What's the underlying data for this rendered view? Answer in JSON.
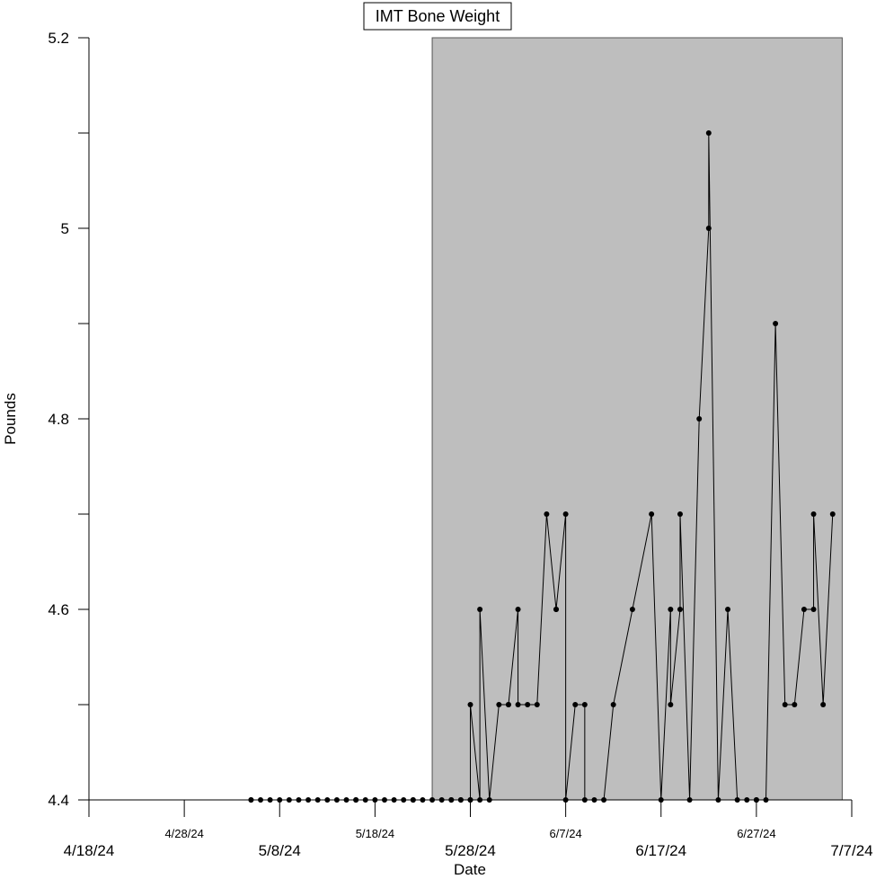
{
  "chart_data": {
    "type": "line",
    "title": "IMT Bone Weight",
    "xlabel": "Date",
    "ylabel": "Pounds",
    "ylim": [
      4.4,
      5.2
    ],
    "y_ticks": [
      4.4,
      4.5,
      4.6,
      4.7,
      4.8,
      4.9,
      5.0,
      5.1,
      5.2
    ],
    "y_tick_labels": [
      "4.4",
      "",
      "4.6",
      "",
      "4.8",
      "",
      "5",
      "",
      "5.2"
    ],
    "xlim": [
      "2024-04-18",
      "2024-07-07"
    ],
    "x_ticks": [
      {
        "date": "2024-04-18",
        "label": "4/18/24",
        "size": "large"
      },
      {
        "date": "2024-04-28",
        "label": "4/28/24",
        "size": "small"
      },
      {
        "date": "2024-05-08",
        "label": "5/8/24",
        "size": "large"
      },
      {
        "date": "2024-05-18",
        "label": "5/18/24",
        "size": "small"
      },
      {
        "date": "2024-05-28",
        "label": "5/28/24",
        "size": "large"
      },
      {
        "date": "2024-06-07",
        "label": "6/7/24",
        "size": "small"
      },
      {
        "date": "2024-06-17",
        "label": "6/17/24",
        "size": "large"
      },
      {
        "date": "2024-06-27",
        "label": "6/27/24",
        "size": "small"
      },
      {
        "date": "2024-07-07",
        "label": "7/7/24",
        "size": "large"
      }
    ],
    "shaded_region": {
      "x_start": "2024-05-24",
      "x_end": "2024-07-06",
      "color": "#bebebe"
    },
    "grid": false,
    "series": [
      {
        "points": [
          [
            "2024-05-05",
            4.4
          ],
          [
            "2024-05-05",
            4.4
          ],
          [
            "2024-05-06",
            4.4
          ],
          [
            "2024-05-07",
            4.4
          ],
          [
            "2024-05-08",
            4.4
          ],
          [
            "2024-05-09",
            4.4
          ],
          [
            "2024-05-10",
            4.4
          ],
          [
            "2024-05-11",
            4.4
          ],
          [
            "2024-05-12",
            4.4
          ],
          [
            "2024-05-13",
            4.4
          ],
          [
            "2024-05-14",
            4.4
          ],
          [
            "2024-05-15",
            4.4
          ],
          [
            "2024-05-16",
            4.4
          ],
          [
            "2024-05-16",
            4.4
          ],
          [
            "2024-05-17",
            4.4
          ],
          [
            "2024-05-18",
            4.4
          ],
          [
            "2024-05-19",
            4.4
          ],
          [
            "2024-05-20",
            4.4
          ],
          [
            "2024-05-21",
            4.4
          ],
          [
            "2024-05-22",
            4.4
          ],
          [
            "2024-05-22",
            4.4
          ],
          [
            "2024-05-23",
            4.4
          ],
          [
            "2024-05-24",
            4.4
          ],
          [
            "2024-05-25",
            4.4
          ],
          [
            "2024-05-26",
            4.4
          ],
          [
            "2024-05-26",
            4.4
          ],
          [
            "2024-05-27",
            4.4
          ],
          [
            "2024-05-27",
            4.4
          ],
          [
            "2024-05-28",
            4.4
          ],
          [
            "2024-05-28",
            4.4
          ],
          [
            "2024-05-28",
            4.5
          ],
          [
            "2024-05-29",
            4.4
          ],
          [
            "2024-05-29",
            4.6
          ],
          [
            "2024-05-30",
            4.4
          ],
          [
            "2024-05-31",
            4.5
          ],
          [
            "2024-06-01",
            4.5
          ],
          [
            "2024-06-01",
            4.5
          ],
          [
            "2024-06-02",
            4.6
          ],
          [
            "2024-06-02",
            4.5
          ],
          [
            "2024-06-03",
            4.5
          ],
          [
            "2024-06-04",
            4.5
          ],
          [
            "2024-06-05",
            4.7
          ],
          [
            "2024-06-06",
            4.6
          ],
          [
            "2024-06-06",
            4.6
          ],
          [
            "2024-06-07",
            4.7
          ],
          [
            "2024-06-07",
            4.4
          ],
          [
            "2024-06-08",
            4.5
          ],
          [
            "2024-06-09",
            4.5
          ],
          [
            "2024-06-09",
            4.4
          ],
          [
            "2024-06-10",
            4.4
          ],
          [
            "2024-06-11",
            4.4
          ],
          [
            "2024-06-12",
            4.5
          ],
          [
            "2024-06-14",
            4.6
          ],
          [
            "2024-06-16",
            4.7
          ],
          [
            "2024-06-17",
            4.4
          ],
          [
            "2024-06-18",
            4.6
          ],
          [
            "2024-06-18",
            4.5
          ],
          [
            "2024-06-19",
            4.6
          ],
          [
            "2024-06-19",
            4.7
          ],
          [
            "2024-06-20",
            4.4
          ],
          [
            "2024-06-21",
            4.8
          ],
          [
            "2024-06-22",
            5.0
          ],
          [
            "2024-06-22",
            5.1
          ],
          [
            "2024-06-23",
            4.4
          ],
          [
            "2024-06-24",
            4.6
          ],
          [
            "2024-06-25",
            4.4
          ],
          [
            "2024-06-26",
            4.4
          ],
          [
            "2024-06-27",
            4.4
          ],
          [
            "2024-06-27",
            4.4
          ],
          [
            "2024-06-28",
            4.4
          ],
          [
            "2024-06-29",
            4.9
          ],
          [
            "2024-06-30",
            4.5
          ],
          [
            "2024-07-01",
            4.5
          ],
          [
            "2024-07-02",
            4.6
          ],
          [
            "2024-07-03",
            4.6
          ],
          [
            "2024-07-03",
            4.7
          ],
          [
            "2024-07-04",
            4.5
          ],
          [
            "2024-07-05",
            4.7
          ]
        ]
      }
    ]
  }
}
